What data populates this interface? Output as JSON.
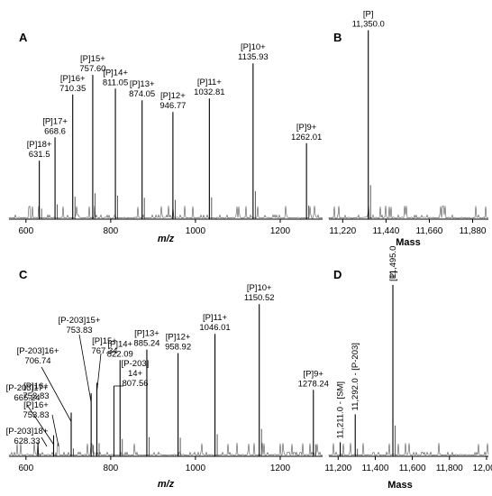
{
  "chart_data": [
    {
      "panel": "A",
      "type": "line",
      "xlabel": "m/z",
      "xlim": [
        560,
        1300
      ],
      "xticks": [
        600,
        800,
        1000,
        1200
      ],
      "xtick_labels": [
        "600",
        "800",
        "1000",
        "1200"
      ],
      "peaks": [
        {
          "x": 631.5,
          "y": 0.3,
          "label": [
            "[P]18+",
            "631.5"
          ]
        },
        {
          "x": 668.6,
          "y": 0.42,
          "label": [
            "[P]17+",
            "668.6"
          ]
        },
        {
          "x": 710.35,
          "y": 0.64,
          "label": [
            "[P]16+",
            "710.35"
          ]
        },
        {
          "x": 757.6,
          "y": 0.74,
          "label": [
            "[P]15+",
            "757.60"
          ]
        },
        {
          "x": 811.05,
          "y": 0.67,
          "label": [
            "[P]14+",
            "811.05"
          ]
        },
        {
          "x": 874.05,
          "y": 0.61,
          "label": [
            "[P]13+",
            "874.05"
          ]
        },
        {
          "x": 946.77,
          "y": 0.55,
          "label": [
            "[P]12+",
            "946.77"
          ]
        },
        {
          "x": 1032.81,
          "y": 0.62,
          "label": [
            "[P]11+",
            "1032.81"
          ]
        },
        {
          "x": 1135.93,
          "y": 0.8,
          "label": [
            "[P]10+",
            "1135.93"
          ]
        },
        {
          "x": 1262.01,
          "y": 0.39,
          "label": [
            "[P]9+",
            "1262.01"
          ]
        }
      ]
    },
    {
      "panel": "B",
      "type": "line",
      "xlabel": "Mass",
      "xlim": [
        11150,
        11960
      ],
      "xticks": [
        11220,
        11440,
        11660,
        11880
      ],
      "xtick_labels": [
        "11,220",
        "11,440",
        "11,660",
        "11,880"
      ],
      "peaks": [
        {
          "x": 11350.0,
          "y": 0.97,
          "label": [
            "[P]",
            "11,350.0"
          ]
        }
      ]
    },
    {
      "panel": "C",
      "type": "line",
      "xlabel": "m/z",
      "xlim": [
        560,
        1300
      ],
      "xticks": [
        600,
        800,
        1000,
        1200
      ],
      "xtick_labels": [
        "600",
        "800",
        "1000",
        "1200"
      ],
      "peaks": [
        {
          "x": 628.33,
          "y": 0.08,
          "label": [
            "[P-203]18+",
            "628.33"
          ]
        },
        {
          "x": 665.24,
          "y": 0.12,
          "label": [
            "[P-203]17+",
            "665.24"
          ]
        },
        {
          "x": 706.74,
          "y": 0.25,
          "label": [
            "[P-203]16+",
            "706.74"
          ]
        },
        {
          "x": 753.83,
          "y": 0.36,
          "label": [
            "[P-203]15+",
            "753.83"
          ]
        },
        {
          "x": 767.34,
          "y": 0.42,
          "label": [
            "[P]15+",
            "767.34"
          ]
        },
        {
          "x": 822.09,
          "y": 0.55,
          "label": [
            "[P]14+",
            "822.09"
          ]
        },
        {
          "x": 885.24,
          "y": 0.61,
          "label": [
            "[P]13+",
            "885.24"
          ]
        },
        {
          "x": 958.92,
          "y": 0.59,
          "label": [
            "[P]12+",
            "958.92"
          ]
        },
        {
          "x": 1046.01,
          "y": 0.7,
          "label": [
            "[P]11+",
            "1046.01"
          ]
        },
        {
          "x": 1150.52,
          "y": 0.87,
          "label": [
            "[P]10+",
            "1150.52"
          ]
        },
        {
          "x": 1278.24,
          "y": 0.38,
          "label": [
            "[P]9+",
            "1278.24"
          ]
        }
      ],
      "extra_labels": [
        {
          "label": [
            "[P]16+",
            "753.83"
          ]
        },
        {
          "label": [
            "[P]16+",
            "753.83"
          ]
        },
        {
          "label": [
            "[P-203]",
            "14+",
            "807.56"
          ]
        }
      ]
    },
    {
      "panel": "D",
      "type": "line",
      "xlabel": "Mass",
      "xlim": [
        11150,
        12010
      ],
      "xticks": [
        11200,
        11400,
        11600,
        11800,
        12000
      ],
      "xtick_labels": [
        "11,200",
        "11,400",
        "11,600",
        "11,800",
        "12,000"
      ],
      "peaks": [
        {
          "x": 11211.0,
          "y": 0.08,
          "label": "11,211.0 - [SM]"
        },
        {
          "x": 11292.0,
          "y": 0.24,
          "label": "11,292.0 - [P-203]"
        },
        {
          "x": 11495.0,
          "y": 0.98,
          "label": [
            "[P]",
            "11,495.0"
          ]
        }
      ]
    }
  ]
}
